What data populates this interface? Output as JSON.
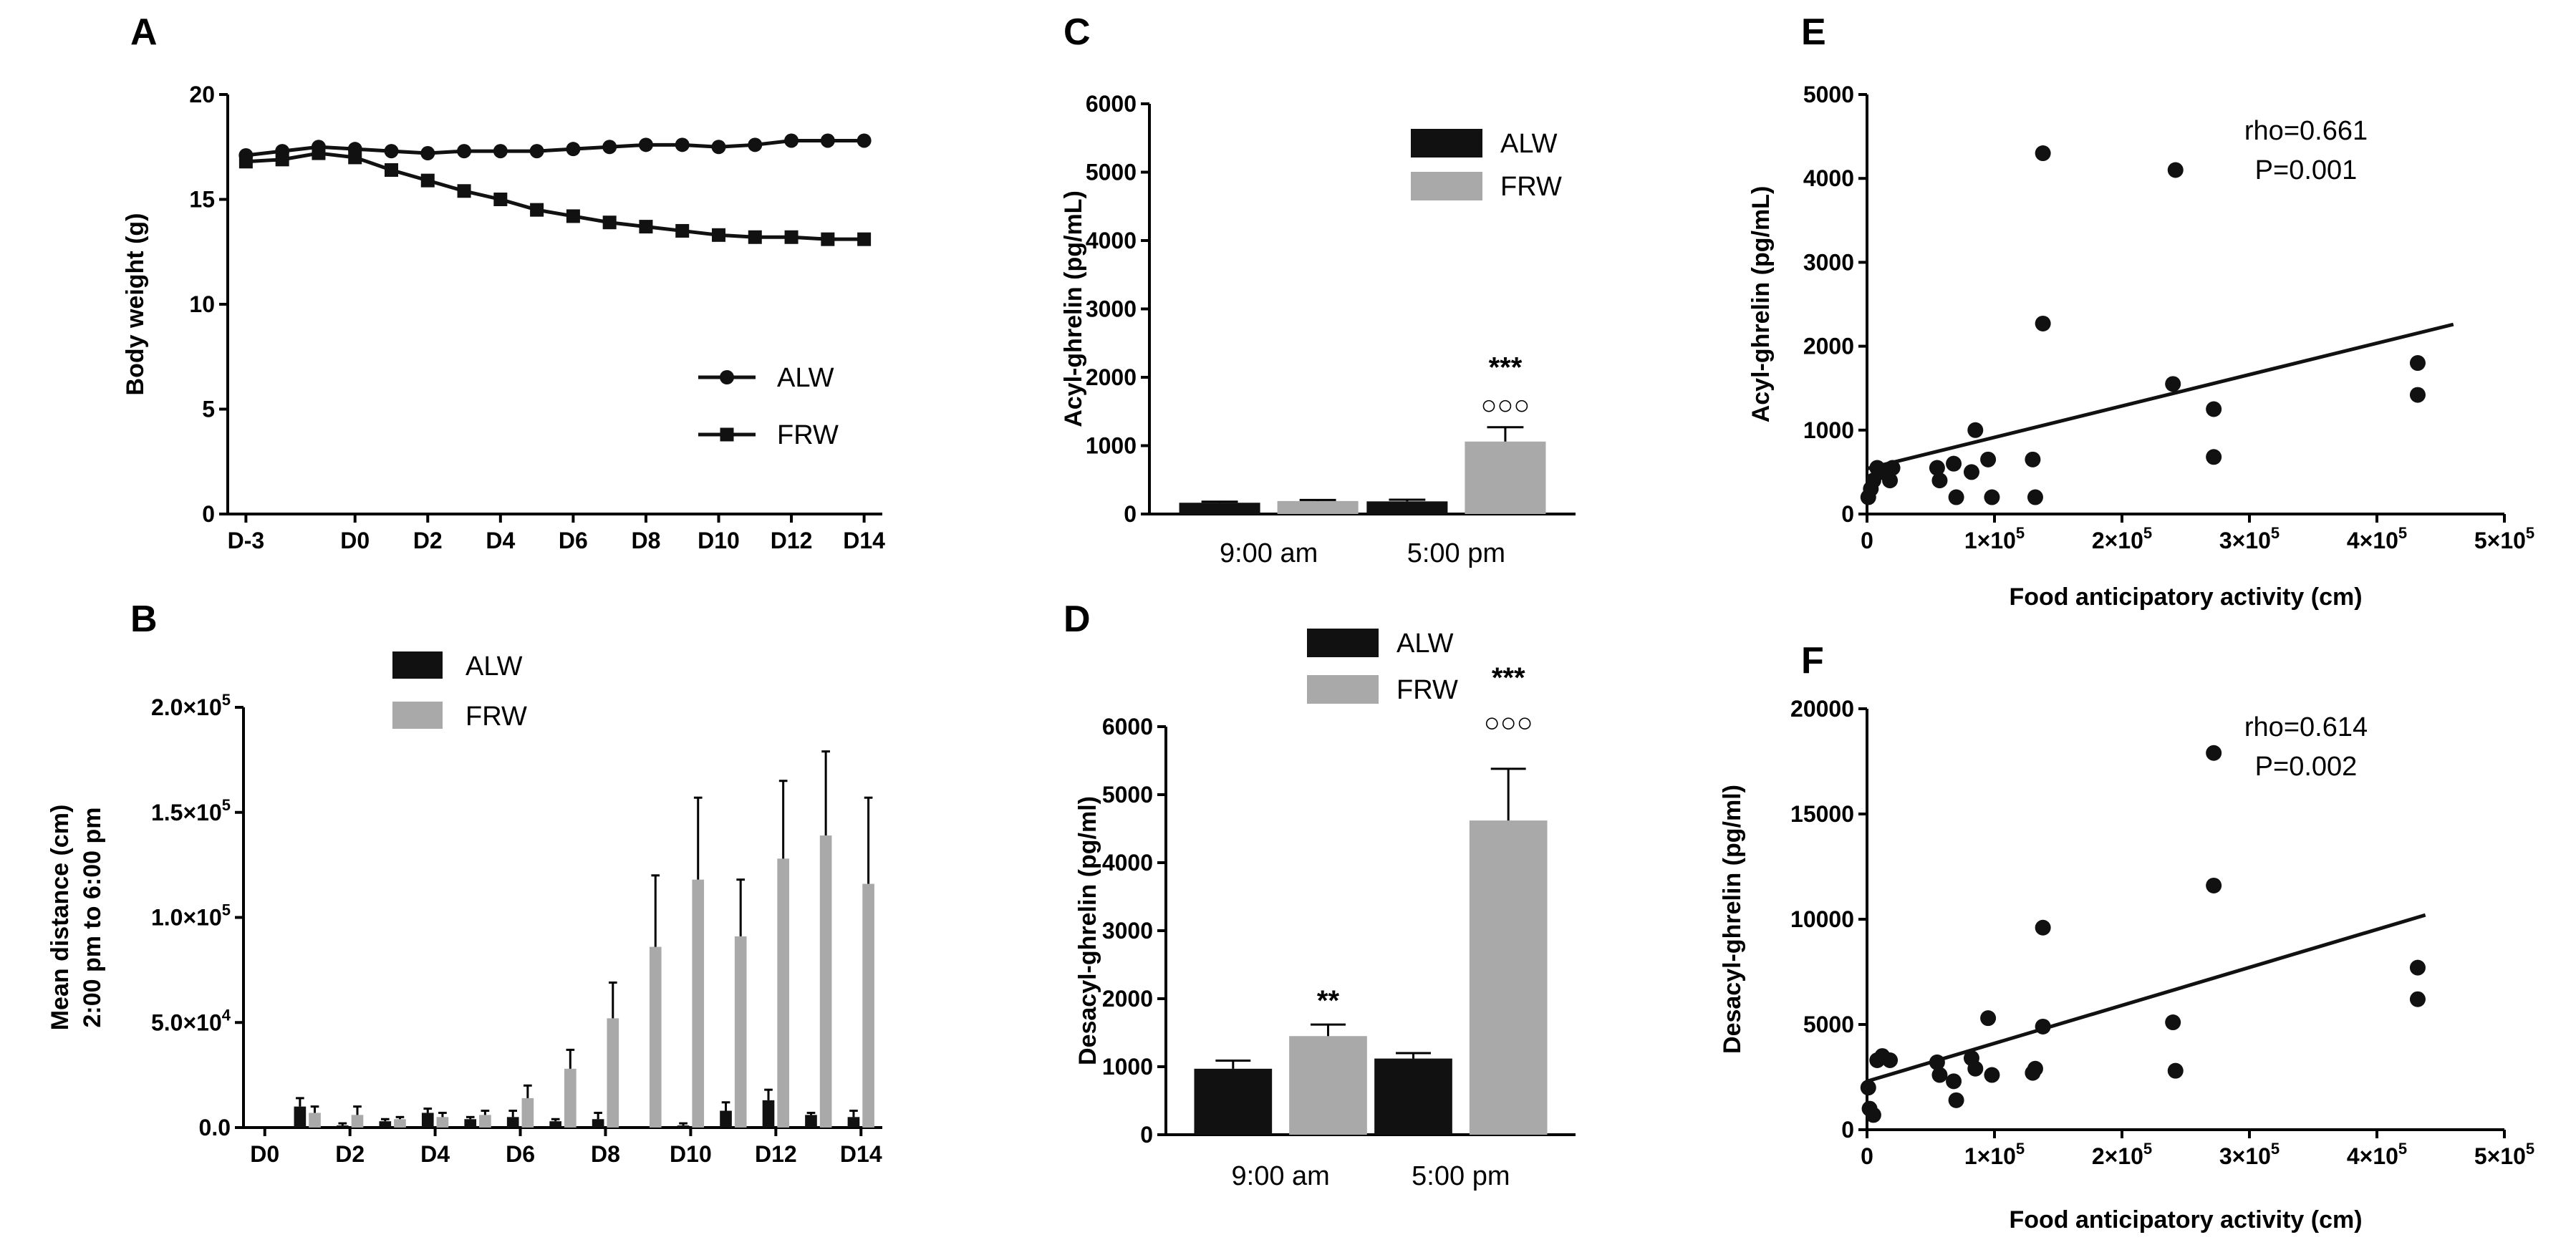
{
  "figure": {
    "colors": {
      "alw": "#111111",
      "frw": "#a9a9a9",
      "axis": "#000000"
    },
    "significance": {
      "stars3": "***",
      "stars2": "**",
      "circles3": "○○○"
    }
  },
  "chart_data": [
    {
      "panel": "A",
      "type": "line",
      "ylabel": "Body weight (g)",
      "xlabel": "",
      "ylim": [
        0,
        20
      ],
      "yticks": [
        "0",
        "5",
        "10",
        "15",
        "20"
      ],
      "xlim": [
        -3.5,
        14.5
      ],
      "xtick_values": [
        -3,
        0,
        2,
        4,
        6,
        8,
        10,
        12,
        14
      ],
      "xtick_labels": [
        "D-3",
        "D0",
        "D2",
        "D4",
        "D6",
        "D8",
        "D10",
        "D12",
        "D14"
      ],
      "x": [
        -3,
        -2,
        -1,
        0,
        1,
        2,
        3,
        4,
        5,
        6,
        7,
        8,
        9,
        10,
        11,
        12,
        13,
        14
      ],
      "legend": [
        "ALW",
        "FRW"
      ],
      "series": [
        {
          "name": "ALW",
          "marker": "circle",
          "values": [
            17.1,
            17.3,
            17.5,
            17.4,
            17.3,
            17.2,
            17.3,
            17.3,
            17.3,
            17.4,
            17.5,
            17.6,
            17.6,
            17.5,
            17.6,
            17.8,
            17.8,
            17.8
          ]
        },
        {
          "name": "FRW",
          "marker": "square",
          "values": [
            16.8,
            16.9,
            17.2,
            17.0,
            16.4,
            15.9,
            15.4,
            15.0,
            14.5,
            14.2,
            13.9,
            13.7,
            13.5,
            13.3,
            13.2,
            13.2,
            13.1,
            13.1
          ]
        }
      ]
    },
    {
      "panel": "B",
      "type": "bar",
      "ylabel_lines": [
        "Mean distance (cm)",
        "2:00 pm to 6:00 pm"
      ],
      "ylim": [
        0,
        200000
      ],
      "yticks": [
        {
          "value": 0,
          "label": "0.0"
        },
        {
          "value": 50000,
          "label": "5.0×10",
          "sup": "4"
        },
        {
          "value": 100000,
          "label": "1.0×10",
          "sup": "5"
        },
        {
          "value": 150000,
          "label": "1.5×10",
          "sup": "5"
        },
        {
          "value": 200000,
          "label": "2.0×10",
          "sup": "5"
        }
      ],
      "categories": [
        "D0",
        "D1",
        "D2",
        "D3",
        "D4",
        "D5",
        "D6",
        "D7",
        "D8",
        "D9",
        "D10",
        "D11",
        "D12",
        "D13",
        "D14"
      ],
      "xtick_labels": [
        "D0",
        "D2",
        "D4",
        "D6",
        "D8",
        "D10",
        "D12",
        "D14"
      ],
      "legend": [
        "ALW",
        "FRW"
      ],
      "series": [
        {
          "name": "ALW",
          "values": [
            0,
            10000,
            1000,
            3000,
            7000,
            4000,
            5000,
            3000,
            4000,
            0,
            1000,
            8000,
            13000,
            6000,
            5000
          ],
          "errors": [
            0,
            4000,
            1000,
            1000,
            2000,
            1000,
            3000,
            1000,
            3000,
            0,
            1000,
            4000,
            5000,
            1000,
            3000
          ]
        },
        {
          "name": "FRW",
          "values": [
            0,
            7000,
            6000,
            4000,
            5000,
            6000,
            14000,
            28000,
            52000,
            86000,
            118000,
            91000,
            128000,
            139000,
            116000
          ],
          "errors": [
            0,
            3000,
            4000,
            1000,
            2000,
            2000,
            6000,
            9000,
            17000,
            34000,
            39000,
            27000,
            37000,
            40000,
            41000
          ]
        }
      ]
    },
    {
      "panel": "C",
      "type": "bar",
      "ylabel": "Acyl-ghrelin (pg/mL)",
      "ylim": [
        0,
        6000
      ],
      "yticks": [
        "0",
        "1000",
        "2000",
        "3000",
        "4000",
        "5000",
        "6000"
      ],
      "categories": [
        "9:00 am",
        "5:00 pm"
      ],
      "legend": [
        "ALW",
        "FRW"
      ],
      "series": [
        {
          "name": "ALW",
          "values": [
            165,
            185
          ],
          "errors": [
            15,
            25
          ]
        },
        {
          "name": "FRW",
          "values": [
            190,
            1060
          ],
          "errors": [
            15,
            210
          ]
        }
      ],
      "annotations": {
        "stars": "***",
        "circles": "○○○"
      }
    },
    {
      "panel": "D",
      "type": "bar",
      "ylabel": "Desacyl-ghrelin (pg/ml)",
      "ylim": [
        0,
        6000
      ],
      "yticks": [
        "0",
        "1000",
        "2000",
        "3000",
        "4000",
        "5000",
        "6000"
      ],
      "categories": [
        "9:00 am",
        "5:00 pm"
      ],
      "legend": [
        "ALW",
        "FRW"
      ],
      "series": [
        {
          "name": "ALW",
          "values": [
            970,
            1120
          ],
          "errors": [
            120,
            80
          ]
        },
        {
          "name": "FRW",
          "values": [
            1450,
            4620
          ],
          "errors": [
            170,
            760
          ]
        }
      ],
      "annotations": {
        "frw_am": "**",
        "stars": "***",
        "circles": "○○○"
      }
    },
    {
      "panel": "E",
      "type": "scatter",
      "xlabel": "Food anticipatory activity (cm)",
      "ylabel": "Acyl-ghrelin  (pg/mL)",
      "xlim": [
        0,
        500000
      ],
      "ylim": [
        0,
        5000
      ],
      "xticks": [
        {
          "value": 0,
          "label": "0"
        },
        {
          "value": 100000,
          "label": "1×10",
          "sup": "5"
        },
        {
          "value": 200000,
          "label": "2×10",
          "sup": "5"
        },
        {
          "value": 300000,
          "label": "3×10",
          "sup": "5"
        },
        {
          "value": 400000,
          "label": "4×10",
          "sup": "5"
        },
        {
          "value": 500000,
          "label": "5×10",
          "sup": "5"
        }
      ],
      "yticks": [
        "0",
        "1000",
        "2000",
        "3000",
        "4000",
        "5000"
      ],
      "points": [
        [
          1000,
          200
        ],
        [
          3000,
          300
        ],
        [
          5000,
          400
        ],
        [
          8000,
          550
        ],
        [
          12000,
          500
        ],
        [
          18000,
          400
        ],
        [
          20000,
          550
        ],
        [
          55000,
          550
        ],
        [
          57000,
          400
        ],
        [
          68000,
          600
        ],
        [
          70000,
          200
        ],
        [
          82000,
          500
        ],
        [
          85000,
          1000
        ],
        [
          95000,
          650
        ],
        [
          98000,
          200
        ],
        [
          130000,
          650
        ],
        [
          132000,
          200
        ],
        [
          138000,
          2270
        ],
        [
          138000,
          4300
        ],
        [
          240000,
          1550
        ],
        [
          242000,
          4100
        ],
        [
          272000,
          1250
        ],
        [
          272000,
          680
        ],
        [
          432000,
          1800
        ],
        [
          432000,
          1420
        ]
      ],
      "regression": {
        "x": [
          0,
          460000
        ],
        "y": [
          540,
          2260
        ]
      },
      "stats": [
        "rho=0.661",
        "P=0.001"
      ]
    },
    {
      "panel": "F",
      "type": "scatter",
      "xlabel": "Food anticipatory activity (cm)",
      "ylabel": "Desacyl-ghrelin (pg/ml)",
      "xlim": [
        0,
        500000
      ],
      "ylim": [
        0,
        20000
      ],
      "xticks": [
        {
          "value": 0,
          "label": "0"
        },
        {
          "value": 100000,
          "label": "1×10",
          "sup": "5"
        },
        {
          "value": 200000,
          "label": "2×10",
          "sup": "5"
        },
        {
          "value": 300000,
          "label": "3×10",
          "sup": "5"
        },
        {
          "value": 400000,
          "label": "4×10",
          "sup": "5"
        },
        {
          "value": 500000,
          "label": "5×10",
          "sup": "5"
        }
      ],
      "yticks": [
        "0",
        "5000",
        "10000",
        "15000",
        "20000"
      ],
      "points": [
        [
          1000,
          2000
        ],
        [
          2000,
          1000
        ],
        [
          5000,
          700
        ],
        [
          8000,
          3300
        ],
        [
          12000,
          3500
        ],
        [
          18000,
          3300
        ],
        [
          55000,
          3200
        ],
        [
          57000,
          2600
        ],
        [
          68000,
          2300
        ],
        [
          70000,
          1400
        ],
        [
          82000,
          3400
        ],
        [
          85000,
          2900
        ],
        [
          95000,
          5300
        ],
        [
          98000,
          2600
        ],
        [
          130000,
          2700
        ],
        [
          132000,
          2900
        ],
        [
          138000,
          4900
        ],
        [
          138000,
          9600
        ],
        [
          240000,
          5100
        ],
        [
          242000,
          2800
        ],
        [
          272000,
          17900
        ],
        [
          272000,
          11600
        ],
        [
          432000,
          7700
        ],
        [
          432000,
          6200
        ]
      ],
      "regression": {
        "x": [
          0,
          438000
        ],
        "y": [
          2300,
          10200
        ]
      },
      "stats": [
        "rho=0.614",
        "P=0.002"
      ]
    }
  ]
}
